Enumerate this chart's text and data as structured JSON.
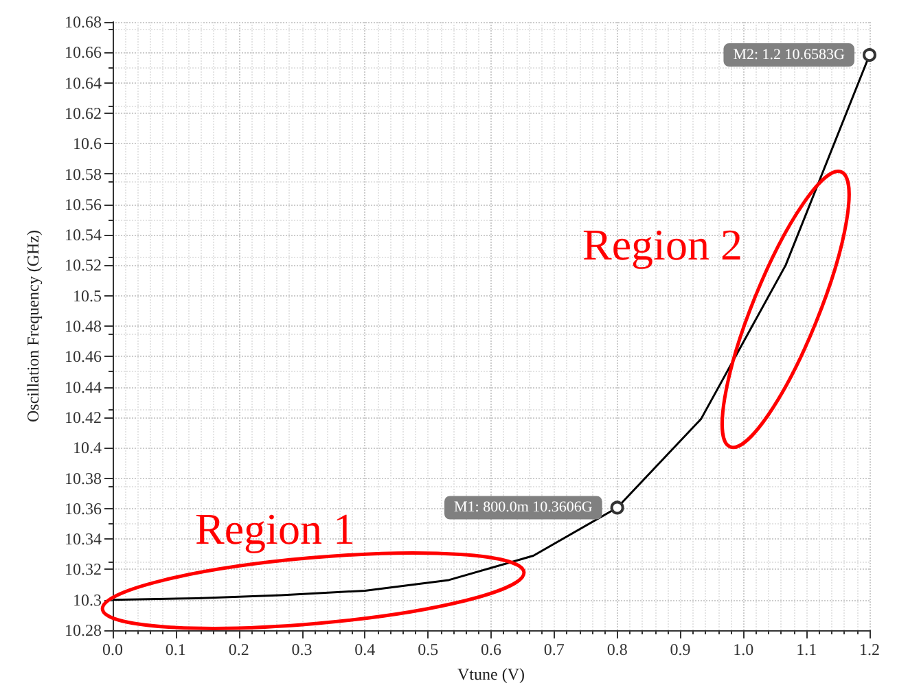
{
  "chart_data": {
    "type": "line",
    "xlabel": "Vtune (V)",
    "ylabel": "Oscillation Frequency (GHz)",
    "x": [
      0,
      0.133,
      0.267,
      0.4,
      0.533,
      0.667,
      0.8,
      0.933,
      1.067,
      1.2
    ],
    "series": [
      {
        "color": "#000000",
        "values": [
          10.3,
          10.301,
          10.303,
          10.306,
          10.313,
          10.329,
          10.3606,
          10.419,
          10.52,
          10.6583
        ]
      }
    ],
    "xlim": [
      0,
      1.2
    ],
    "xticks": [
      {
        "value": 0,
        "label": "0.0"
      },
      0.1,
      0.2,
      0.3,
      0.4,
      0.5,
      0.6,
      0.7,
      0.8,
      0.9,
      {
        "value": 1,
        "label": "1.0"
      },
      1.1,
      1.2
    ],
    "ylim": [
      10.28,
      10.68
    ],
    "yticks": [
      10.28,
      10.3,
      10.32,
      10.34,
      10.36,
      10.38,
      10.4,
      10.42,
      10.44,
      10.46,
      10.48,
      10.5,
      10.52,
      10.54,
      10.56,
      10.58,
      10.6,
      10.62,
      10.64,
      10.66,
      10.68
    ],
    "grid": true,
    "marker": "none",
    "line_style": "solid",
    "annotations": [
      {
        "text": "M1: 800.0m 10.3606G",
        "x": 0.8,
        "y": 10.3606
      },
      {
        "text": "M2: 1.2 10.6583G",
        "x": 1.2,
        "y": 10.6583
      },
      "Region 1",
      "Region 2"
    ]
  }
}
